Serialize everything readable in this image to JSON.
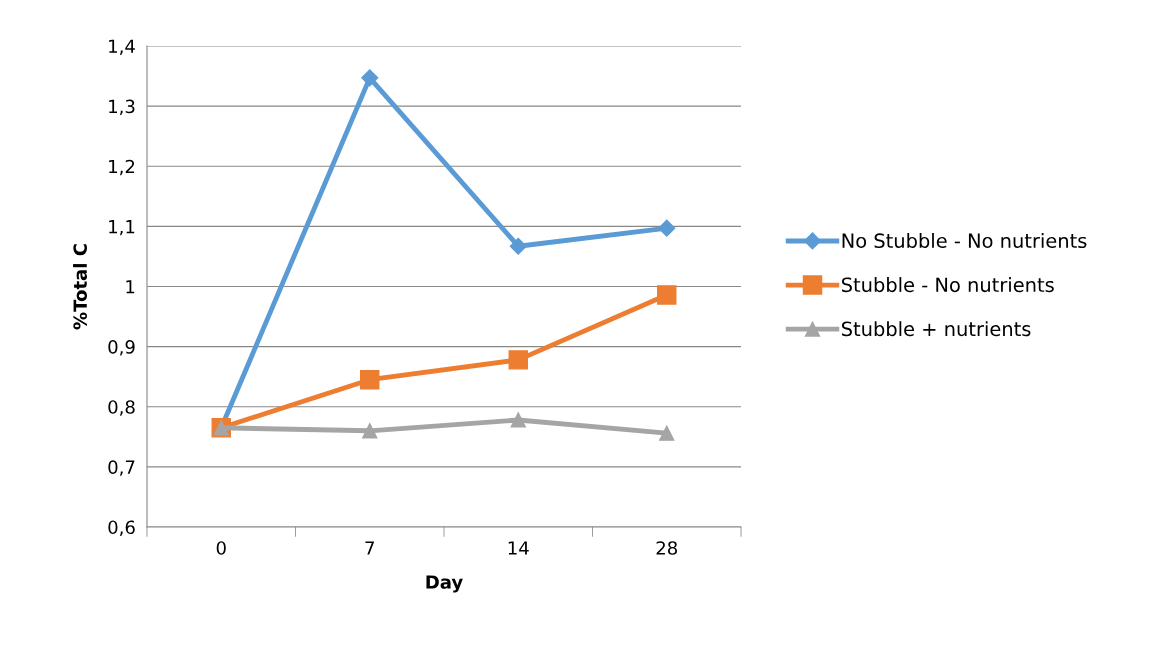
{
  "chart_data": {
    "type": "line",
    "xlabel": "Day",
    "ylabel": "%Total C",
    "categories": [
      "0",
      "7",
      "14",
      "28"
    ],
    "series": [
      {
        "name": "No Stubble - No nutrients",
        "color": "#5b9bd5",
        "marker": "diamond",
        "values": [
          0.765,
          1.347,
          1.067,
          1.097
        ]
      },
      {
        "name": "Stubble - No nutrients",
        "color": "#ed7d31",
        "marker": "square",
        "values": [
          0.765,
          0.845,
          0.878,
          0.986
        ]
      },
      {
        "name": "Stubble + nutrients",
        "color": "#a5a5a5",
        "marker": "triangle",
        "values": [
          0.765,
          0.76,
          0.778,
          0.756
        ]
      }
    ],
    "ylim": [
      0.6,
      1.4
    ],
    "yticks": [
      {
        "value": 0.6,
        "label": "0,6"
      },
      {
        "value": 0.7,
        "label": "0,7"
      },
      {
        "value": 0.8,
        "label": "0,8"
      },
      {
        "value": 0.9,
        "label": "0,9"
      },
      1,
      {
        "value": 1.1,
        "label": "1,1"
      },
      {
        "value": 1.2,
        "label": "1,2"
      },
      {
        "value": 1.3,
        "label": "1,3"
      },
      {
        "value": 1.4,
        "label": "1,4"
      }
    ],
    "grid": "y",
    "legend": "right",
    "line_style": "solid"
  }
}
